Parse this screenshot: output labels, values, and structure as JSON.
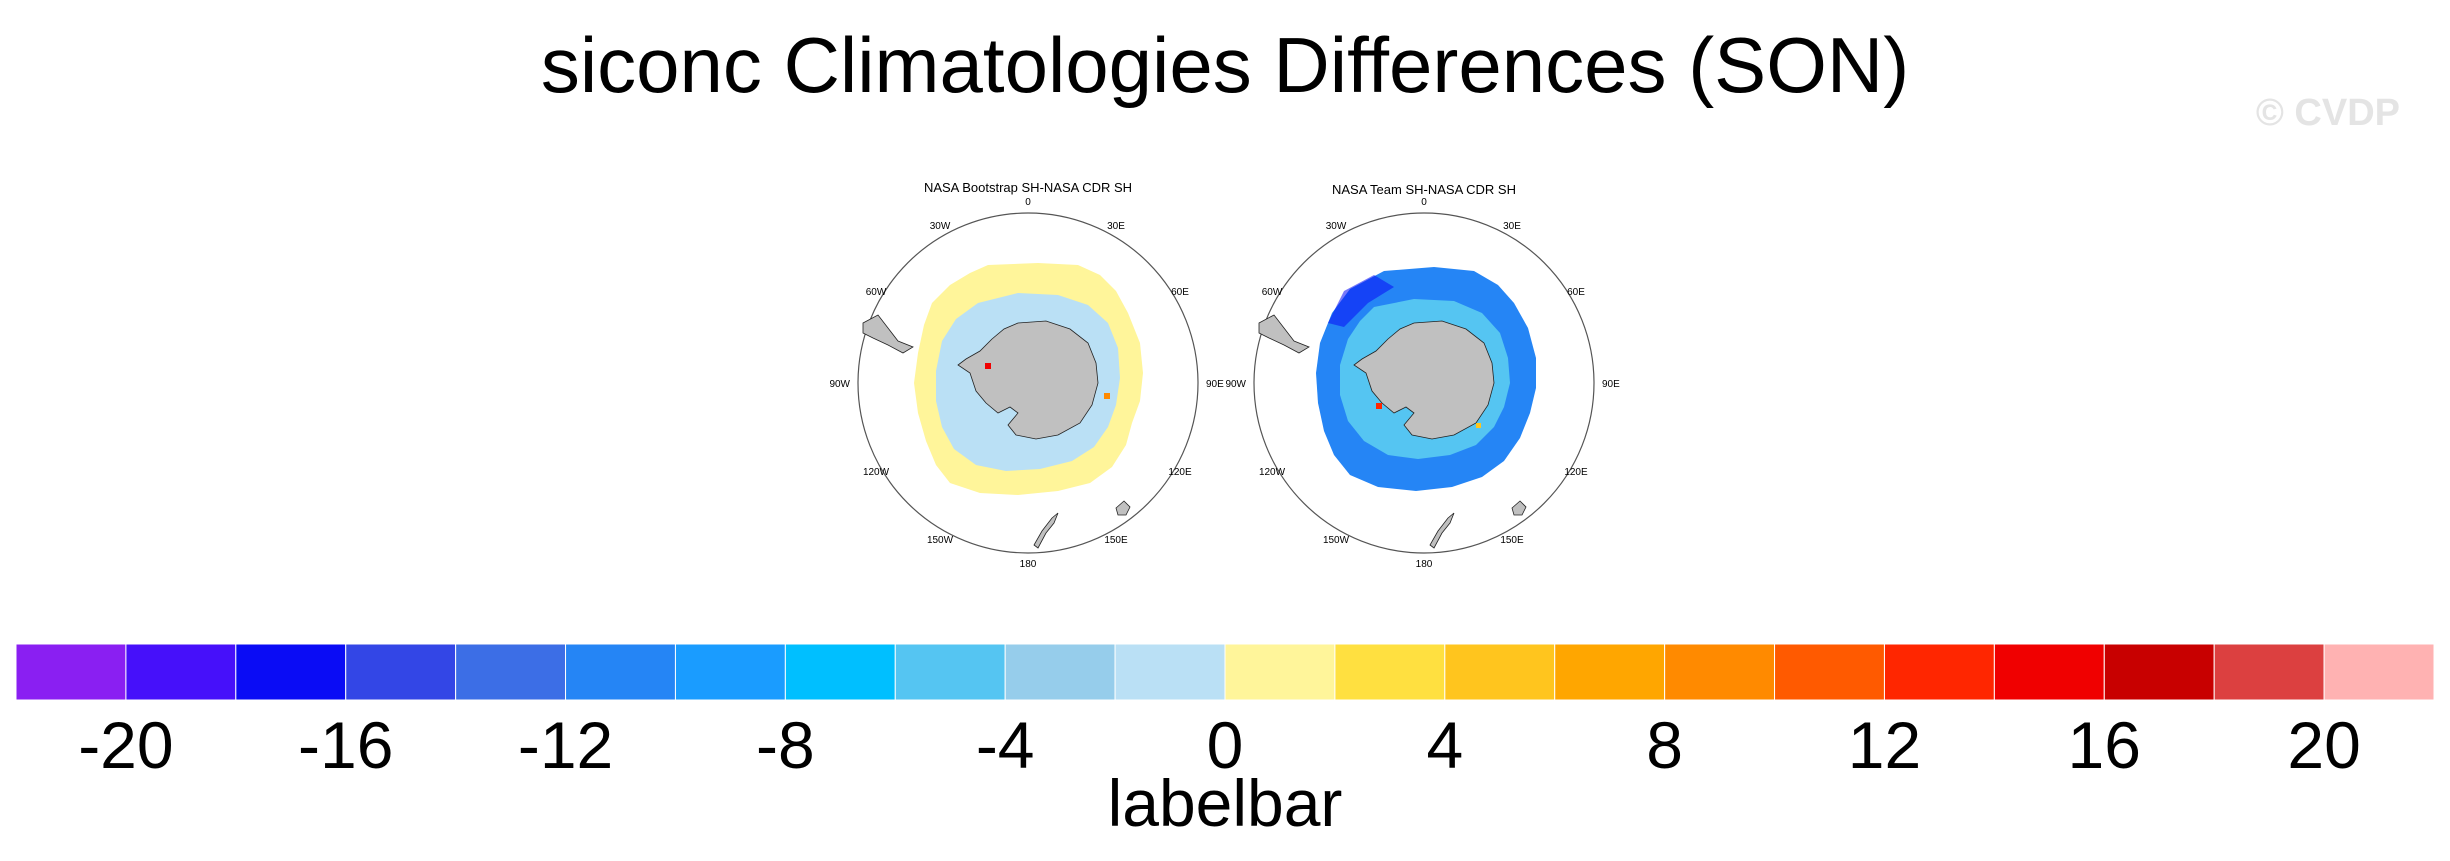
{
  "title": "siconc Climatologies Differences (SON)",
  "watermark": "© CVDP",
  "maps": [
    {
      "title": "NASA Bootstrap SH-NASA CDR SH",
      "lon_labels": [
        "0",
        "30E",
        "60E",
        "90E",
        "120E",
        "150E",
        "180",
        "150W",
        "120W",
        "90W",
        "60W",
        "30W"
      ]
    },
    {
      "title": "NASA Team SH-NASA CDR SH",
      "lon_labels": [
        "0",
        "30E",
        "60E",
        "90E",
        "120E",
        "150E",
        "180",
        "150W",
        "120W",
        "90W",
        "60W",
        "30W"
      ]
    }
  ],
  "labelbar": {
    "label": "labelbar",
    "colors": [
      "#8a1ff2",
      "#4610fa",
      "#0a0cf5",
      "#3346e6",
      "#3c6ee6",
      "#2585f5",
      "#1a9cff",
      "#00bfff",
      "#55c5f2",
      "#96cdeb",
      "#bae0f5",
      "#fff59a",
      "#ffe040",
      "#ffc51e",
      "#ffa600",
      "#ff8a00",
      "#ff5a00",
      "#ff2600",
      "#f00000",
      "#c80000",
      "#dc4040",
      "#ffb2b2"
    ],
    "tick_labels": [
      "-20",
      "-16",
      "-12",
      "-8",
      "-4",
      "0",
      "4",
      "8",
      "12",
      "16",
      "20"
    ]
  }
}
